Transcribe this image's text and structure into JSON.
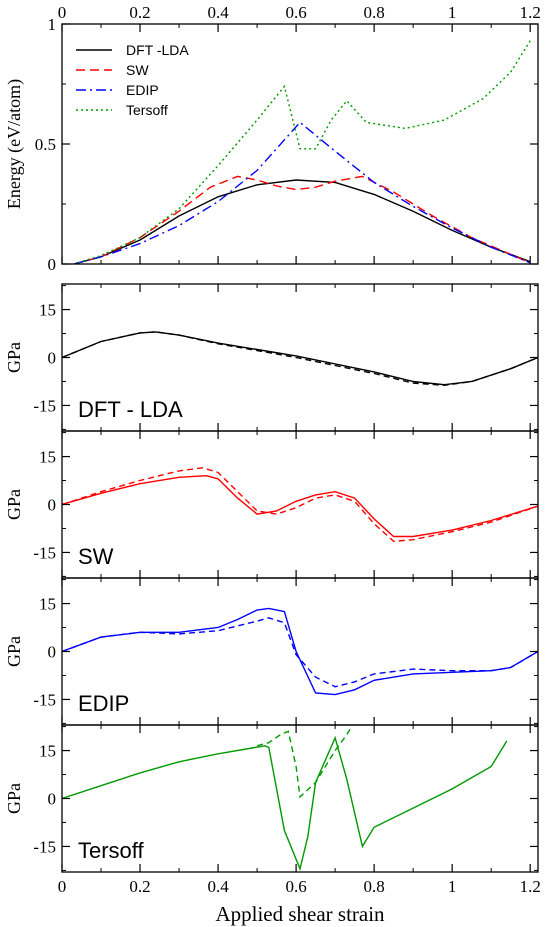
{
  "chart_data": {
    "type": "line",
    "xlabel": "Applied shear strain",
    "xlim": [
      0,
      1.22
    ],
    "xticks": [
      0,
      0.2,
      0.4,
      0.6,
      0.8,
      1,
      1.2
    ],
    "xtick_labels": [
      "0",
      "0.2",
      "0.4",
      "0.6",
      "0.8",
      "1",
      "1.2"
    ],
    "colors": {
      "DFT": "#000000",
      "SW": "#ff0000",
      "EDIP": "#0000ff",
      "Tersoff": "#009900"
    },
    "panels": [
      {
        "id": "energy",
        "ylabel": "Energy (eV/atom)",
        "ylim": [
          0,
          1
        ],
        "yticks": [
          0,
          0.5,
          1
        ],
        "ytick_labels": [
          "0",
          "0.5",
          "1"
        ],
        "legend": {
          "placement": "top-left",
          "entries": [
            "DFT -LDA",
            "SW",
            "EDIP",
            "Tersoff"
          ]
        },
        "series": [
          {
            "name": "DFT -LDA",
            "color": "#000000",
            "dash": "",
            "points": [
              [
                0.03,
                0
              ],
              [
                0.1,
                0.03
              ],
              [
                0.2,
                0.1
              ],
              [
                0.3,
                0.2
              ],
              [
                0.4,
                0.28
              ],
              [
                0.5,
                0.33
              ],
              [
                0.6,
                0.35
              ],
              [
                0.7,
                0.34
              ],
              [
                0.8,
                0.29
              ],
              [
                0.9,
                0.22
              ],
              [
                1.0,
                0.14
              ],
              [
                1.1,
                0.07
              ],
              [
                1.2,
                0.01
              ]
            ]
          },
          {
            "name": "SW",
            "color": "#ff0000",
            "dash": "9,5",
            "points": [
              [
                0.03,
                0
              ],
              [
                0.1,
                0.03
              ],
              [
                0.2,
                0.11
              ],
              [
                0.3,
                0.22
              ],
              [
                0.38,
                0.32
              ],
              [
                0.45,
                0.365
              ],
              [
                0.5,
                0.35
              ],
              [
                0.55,
                0.325
              ],
              [
                0.6,
                0.31
              ],
              [
                0.65,
                0.32
              ],
              [
                0.7,
                0.345
              ],
              [
                0.77,
                0.365
              ],
              [
                0.85,
                0.3
              ],
              [
                0.95,
                0.2
              ],
              [
                1.05,
                0.11
              ],
              [
                1.15,
                0.04
              ],
              [
                1.2,
                0.005
              ]
            ]
          },
          {
            "name": "EDIP",
            "color": "#0000ff",
            "dash": "10,4,2,4",
            "points": [
              [
                0.03,
                0
              ],
              [
                0.1,
                0.03
              ],
              [
                0.2,
                0.085
              ],
              [
                0.3,
                0.16
              ],
              [
                0.4,
                0.26
              ],
              [
                0.5,
                0.39
              ],
              [
                0.61,
                0.59
              ],
              [
                0.7,
                0.47
              ],
              [
                0.8,
                0.34
              ],
              [
                0.9,
                0.24
              ],
              [
                1.0,
                0.15
              ],
              [
                1.1,
                0.07
              ],
              [
                1.2,
                0.005
              ]
            ]
          },
          {
            "name": "Tersoff",
            "color": "#009900",
            "dash": "2,3",
            "points": [
              [
                0.03,
                0
              ],
              [
                0.1,
                0.035
              ],
              [
                0.2,
                0.11
              ],
              [
                0.3,
                0.23
              ],
              [
                0.4,
                0.41
              ],
              [
                0.5,
                0.6
              ],
              [
                0.57,
                0.74
              ],
              [
                0.61,
                0.48
              ],
              [
                0.65,
                0.48
              ],
              [
                0.69,
                0.6
              ],
              [
                0.73,
                0.68
              ],
              [
                0.78,
                0.59
              ],
              [
                0.88,
                0.565
              ],
              [
                0.98,
                0.6
              ],
              [
                1.08,
                0.69
              ],
              [
                1.15,
                0.8
              ],
              [
                1.2,
                0.93
              ]
            ]
          }
        ]
      },
      {
        "id": "dft-stress",
        "ylabel": "GPa",
        "label": "DFT - LDA",
        "ylim": [
          -23,
          23
        ],
        "yticks": [
          -15,
          0,
          15
        ],
        "ytick_labels": [
          "-15",
          "0",
          "15"
        ],
        "series": [
          {
            "name": "DFT -LDA",
            "color": "#000000",
            "dash": "",
            "points": [
              [
                0,
                0
              ],
              [
                0.1,
                5
              ],
              [
                0.2,
                7.7
              ],
              [
                0.24,
                8
              ],
              [
                0.3,
                7
              ],
              [
                0.4,
                4.5
              ],
              [
                0.5,
                2.5
              ],
              [
                0.6,
                0.5
              ],
              [
                0.7,
                -2
              ],
              [
                0.8,
                -4.5
              ],
              [
                0.9,
                -7.5
              ],
              [
                0.98,
                -8.5
              ],
              [
                1.05,
                -7.5
              ],
              [
                1.15,
                -3.5
              ],
              [
                1.22,
                0
              ]
            ]
          },
          {
            "name": "DFT -LDA",
            "color": "#000000",
            "dash": "6,4",
            "points": [
              [
                0,
                0
              ],
              [
                0.1,
                5
              ],
              [
                0.2,
                7.7
              ],
              [
                0.24,
                8
              ],
              [
                0.3,
                7
              ],
              [
                0.4,
                4.3
              ],
              [
                0.5,
                2.2
              ],
              [
                0.6,
                0
              ],
              [
                0.7,
                -2.5
              ],
              [
                0.8,
                -5
              ],
              [
                0.9,
                -8
              ],
              [
                0.98,
                -8.7
              ],
              [
                1.05,
                -7.5
              ],
              [
                1.15,
                -3.5
              ],
              [
                1.22,
                0
              ]
            ]
          }
        ]
      },
      {
        "id": "sw-stress",
        "ylabel": "GPa",
        "label": "SW",
        "ylim": [
          -23,
          23
        ],
        "yticks": [
          -15,
          0,
          15
        ],
        "ytick_labels": [
          "-15",
          "0",
          "15"
        ],
        "series": [
          {
            "name": "SW",
            "color": "#ff0000",
            "dash": "",
            "points": [
              [
                0,
                0
              ],
              [
                0.1,
                3.5
              ],
              [
                0.2,
                6.5
              ],
              [
                0.3,
                8.5
              ],
              [
                0.37,
                9
              ],
              [
                0.4,
                8
              ],
              [
                0.45,
                2
              ],
              [
                0.5,
                -3
              ],
              [
                0.55,
                -2
              ],
              [
                0.6,
                1
              ],
              [
                0.65,
                3
              ],
              [
                0.7,
                4
              ],
              [
                0.75,
                2
              ],
              [
                0.8,
                -4.5
              ],
              [
                0.85,
                -10
              ],
              [
                0.9,
                -10
              ],
              [
                1.0,
                -8
              ],
              [
                1.1,
                -5
              ],
              [
                1.22,
                -0.5
              ]
            ]
          },
          {
            "name": "SW",
            "color": "#ff0000",
            "dash": "6,4",
            "points": [
              [
                0,
                0
              ],
              [
                0.1,
                4
              ],
              [
                0.2,
                7.5
              ],
              [
                0.3,
                10.5
              ],
              [
                0.36,
                11.5
              ],
              [
                0.4,
                10
              ],
              [
                0.45,
                4
              ],
              [
                0.5,
                -2
              ],
              [
                0.55,
                -3
              ],
              [
                0.6,
                -1
              ],
              [
                0.65,
                2
              ],
              [
                0.7,
                3
              ],
              [
                0.75,
                1
              ],
              [
                0.8,
                -6
              ],
              [
                0.85,
                -11.5
              ],
              [
                0.9,
                -11
              ],
              [
                1.0,
                -8.5
              ],
              [
                1.1,
                -5.5
              ],
              [
                1.22,
                -0.5
              ]
            ]
          }
        ]
      },
      {
        "id": "edip-stress",
        "ylabel": "GPa",
        "label": "EDIP",
        "ylim": [
          -23,
          23
        ],
        "yticks": [
          -15,
          0,
          15
        ],
        "ytick_labels": [
          "-15",
          "0",
          "15"
        ],
        "series": [
          {
            "name": "EDIP",
            "color": "#0000ff",
            "dash": "",
            "points": [
              [
                0,
                0
              ],
              [
                0.1,
                4.5
              ],
              [
                0.2,
                6
              ],
              [
                0.3,
                6
              ],
              [
                0.4,
                7.5
              ],
              [
                0.45,
                10
              ],
              [
                0.5,
                13
              ],
              [
                0.53,
                13.5
              ],
              [
                0.57,
                12.5
              ],
              [
                0.6,
                0
              ],
              [
                0.65,
                -13
              ],
              [
                0.7,
                -13.5
              ],
              [
                0.75,
                -12
              ],
              [
                0.8,
                -9
              ],
              [
                0.9,
                -7
              ],
              [
                1.0,
                -6.5
              ],
              [
                1.1,
                -6
              ],
              [
                1.15,
                -5
              ],
              [
                1.22,
                0
              ]
            ]
          },
          {
            "name": "EDIP",
            "color": "#0000ff",
            "dash": "6,4",
            "points": [
              [
                0,
                0
              ],
              [
                0.1,
                4.5
              ],
              [
                0.2,
                6
              ],
              [
                0.3,
                5.5
              ],
              [
                0.4,
                6.5
              ],
              [
                0.5,
                9.5
              ],
              [
                0.53,
                10.5
              ],
              [
                0.57,
                9
              ],
              [
                0.6,
                -1
              ],
              [
                0.65,
                -8
              ],
              [
                0.7,
                -11
              ],
              [
                0.75,
                -9.5
              ],
              [
                0.8,
                -7
              ],
              [
                0.9,
                -5.5
              ],
              [
                1.0,
                -6
              ],
              [
                1.1,
                -6
              ],
              [
                1.15,
                -5
              ],
              [
                1.22,
                0
              ]
            ]
          }
        ]
      },
      {
        "id": "tersoff-stress",
        "ylabel": "GPa",
        "label": "Tersoff",
        "ylim": [
          -23,
          23
        ],
        "yticks": [
          -15,
          0,
          15
        ],
        "ytick_labels": [
          "-15",
          "0",
          "15"
        ],
        "series": [
          {
            "name": "Tersoff",
            "color": "#009900",
            "dash": "",
            "points": [
              [
                0,
                0
              ],
              [
                0.1,
                4
              ],
              [
                0.2,
                8
              ],
              [
                0.3,
                11.5
              ],
              [
                0.4,
                14
              ],
              [
                0.52,
                16.5
              ],
              [
                0.53,
                16
              ],
              [
                0.57,
                -10
              ],
              [
                0.61,
                -22
              ],
              [
                0.63,
                -12
              ],
              [
                0.65,
                5
              ],
              [
                0.7,
                19
              ],
              [
                0.73,
                6
              ],
              [
                0.77,
                -15
              ],
              [
                0.8,
                -9
              ],
              [
                0.9,
                -3
              ],
              [
                1.0,
                3
              ],
              [
                1.1,
                10
              ],
              [
                1.14,
                18
              ]
            ]
          },
          {
            "name": "Tersoff",
            "color": "#009900",
            "dash": "6,4",
            "points": [
              [
                0.5,
                16.5
              ],
              [
                0.53,
                17.5
              ],
              [
                0.56,
                20
              ],
              [
                0.58,
                21
              ],
              [
                0.6,
                10
              ],
              [
                0.61,
                0.5
              ],
              [
                0.65,
                5
              ],
              [
                0.7,
                15
              ],
              [
                0.73,
                20
              ],
              [
                0.74,
                22
              ]
            ]
          }
        ]
      }
    ]
  }
}
